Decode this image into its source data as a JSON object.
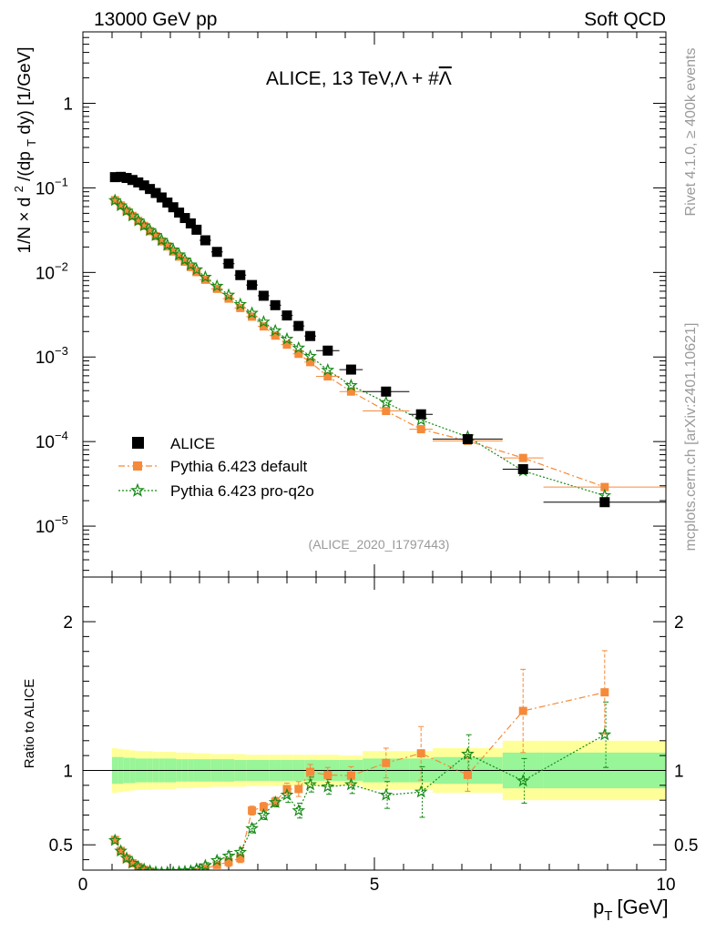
{
  "header": {
    "left": "13000 GeV pp",
    "right": "Soft QCD"
  },
  "side": {
    "rivet": "Rivet 4.1.0, ≥ 400k events",
    "mcplots": "mcplots.cern.ch [arXiv:2401.10621]"
  },
  "colors": {
    "data": "#000000",
    "default": "#f58a3a",
    "proq2o": "#168a16",
    "band_inner": "#98f598",
    "band_outer": "#ffff99"
  },
  "chart_data": {
    "type": "scatter",
    "title": "ALICE, 13 TeV, Λ + #Λ̄",
    "title_main": "ALICE, 13 TeV,",
    "title_particles": "Λ + #",
    "title_bar": "Λ",
    "analysis_label": "(ALICE_2020_I1797443)",
    "xlabel": "p",
    "xlabel_sub": "T",
    "xlabel_unit": "[GeV]",
    "ylabel": "1/N × d²/(dp_T dy) [1/GeV]",
    "ylabel_parts": [
      "1/N",
      "×",
      " d",
      "2",
      "/(dp",
      "T",
      " dy) [1/GeV]"
    ],
    "ratio_ylabel": "Ratio to ALICE",
    "xlim": [
      0,
      10
    ],
    "ylim_log": [
      2.5e-06,
      7
    ],
    "ratio_ylim": [
      0.33,
      2.3
    ],
    "x_ticks": [
      "0",
      "5",
      "10"
    ],
    "y_ticks": [
      {
        "value": 1,
        "base": "1",
        "exp": ""
      },
      {
        "value": 0.1,
        "base": "10",
        "exp": "−1"
      },
      {
        "value": 0.01,
        "base": "10",
        "exp": "−2"
      },
      {
        "value": 0.001,
        "base": "10",
        "exp": "−3"
      },
      {
        "value": 0.0001,
        "base": "10",
        "exp": "−4"
      },
      {
        "value": 1e-05,
        "base": "10",
        "exp": "−5"
      }
    ],
    "ratio_ticks": [
      "0.5",
      "1",
      "2"
    ],
    "legend": [
      "ALICE",
      "Pythia 6.423 default",
      "Pythia 6.423 pro-q2o"
    ],
    "x": [
      0.55,
      0.65,
      0.75,
      0.85,
      0.95,
      1.05,
      1.15,
      1.25,
      1.35,
      1.45,
      1.55,
      1.65,
      1.75,
      1.85,
      1.95,
      2.1,
      2.3,
      2.5,
      2.7,
      2.9,
      3.1,
      3.3,
      3.5,
      3.7,
      3.9,
      4.2,
      4.6,
      5.2,
      5.8,
      6.6,
      7.55,
      8.95
    ],
    "x_err": [
      0.05,
      0.05,
      0.05,
      0.05,
      0.05,
      0.05,
      0.05,
      0.05,
      0.05,
      0.05,
      0.05,
      0.05,
      0.05,
      0.05,
      0.05,
      0.1,
      0.1,
      0.1,
      0.1,
      0.1,
      0.1,
      0.1,
      0.1,
      0.1,
      0.1,
      0.2,
      0.2,
      0.4,
      0.2,
      0.6,
      0.35,
      1.05
    ],
    "series": [
      {
        "name": "ALICE",
        "values": [
          0.134,
          0.135,
          0.131,
          0.124,
          0.116,
          0.107,
          0.097,
          0.087,
          0.077,
          0.067,
          0.059,
          0.051,
          0.044,
          0.038,
          0.032,
          0.024,
          0.0175,
          0.0127,
          0.0093,
          0.0071,
          0.0053,
          0.0041,
          0.0031,
          0.00233,
          0.00177,
          0.00119,
          0.00071,
          0.00039,
          0.00021,
          0.000107,
          4.72e-05,
          1.92e-05
        ]
      },
      {
        "name": "Pythia 6.423 default",
        "values": [
          0.0715,
          0.0619,
          0.0535,
          0.0466,
          0.0408,
          0.0355,
          0.0308,
          0.0268,
          0.0233,
          0.0203,
          0.0177,
          0.0154,
          0.0134,
          0.0116,
          0.0101,
          0.0082,
          0.0064,
          0.0049,
          0.0038,
          0.003,
          0.0023,
          0.00179,
          0.0014,
          0.00109,
          0.00087,
          0.00059,
          0.00039,
          0.00023,
          0.00014,
          0.000102,
          6.4e-05,
          2.9e-05
        ],
        "ratio": [
          0.533,
          0.459,
          0.409,
          0.376,
          0.352,
          0.332,
          0.318,
          0.308,
          0.303,
          0.303,
          0.3,
          0.302,
          0.305,
          0.306,
          0.315,
          0.34,
          0.365,
          0.385,
          0.41,
          0.73,
          0.755,
          0.79,
          0.875,
          0.875,
          0.99,
          0.97,
          0.965,
          1.05,
          1.115,
          0.97,
          1.4,
          1.525
        ],
        "ratio_err": [
          0.02,
          0.02,
          0.02,
          0.02,
          0.02,
          0.02,
          0.02,
          0.02,
          0.02,
          0.02,
          0.02,
          0.02,
          0.02,
          0.02,
          0.02,
          0.02,
          0.02,
          0.03,
          0.03,
          0.03,
          0.03,
          0.03,
          0.04,
          0.05,
          0.05,
          0.05,
          0.06,
          0.1,
          0.18,
          0.11,
          0.28,
          0.28
        ]
      },
      {
        "name": "Pythia 6.423 pro-q2o",
        "values": [
          0.071,
          0.0617,
          0.0536,
          0.0467,
          0.0409,
          0.0358,
          0.0314,
          0.0275,
          0.0241,
          0.0211,
          0.0185,
          0.0162,
          0.0141,
          0.0123,
          0.0108,
          0.0088,
          0.0069,
          0.0054,
          0.0042,
          0.0033,
          0.0026,
          0.00205,
          0.00163,
          0.00128,
          0.00102,
          0.0007,
          0.00046,
          0.00029,
          0.00018,
          0.000114,
          4.5e-05,
          2.3e-05
        ],
        "ratio": [
          0.53,
          0.458,
          0.41,
          0.377,
          0.353,
          0.335,
          0.324,
          0.316,
          0.313,
          0.315,
          0.314,
          0.318,
          0.32,
          0.324,
          0.337,
          0.36,
          0.395,
          0.425,
          0.45,
          0.61,
          0.7,
          0.785,
          0.835,
          0.73,
          0.905,
          0.89,
          0.905,
          0.835,
          0.855,
          1.11,
          0.93,
          1.24
        ],
        "ratio_err": [
          0.02,
          0.02,
          0.02,
          0.02,
          0.02,
          0.02,
          0.02,
          0.02,
          0.02,
          0.02,
          0.02,
          0.02,
          0.02,
          0.02,
          0.02,
          0.02,
          0.02,
          0.03,
          0.03,
          0.03,
          0.03,
          0.03,
          0.05,
          0.05,
          0.05,
          0.05,
          0.06,
          0.09,
          0.17,
          0.13,
          0.15,
          0.22
        ]
      }
    ],
    "band": {
      "inner": [
        0.09,
        0.09,
        0.085,
        0.085,
        0.08,
        0.08,
        0.08,
        0.08,
        0.08,
        0.08,
        0.08,
        0.075,
        0.075,
        0.075,
        0.075,
        0.075,
        0.075,
        0.075,
        0.07,
        0.07,
        0.07,
        0.07,
        0.07,
        0.07,
        0.07,
        0.07,
        0.07,
        0.08,
        0.08,
        0.09,
        0.12,
        0.12
      ],
      "outer": [
        0.15,
        0.145,
        0.14,
        0.135,
        0.13,
        0.13,
        0.13,
        0.125,
        0.125,
        0.125,
        0.125,
        0.12,
        0.12,
        0.12,
        0.115,
        0.115,
        0.11,
        0.11,
        0.11,
        0.105,
        0.105,
        0.105,
        0.105,
        0.105,
        0.105,
        0.105,
        0.1,
        0.13,
        0.13,
        0.15,
        0.2,
        0.2
      ]
    }
  }
}
